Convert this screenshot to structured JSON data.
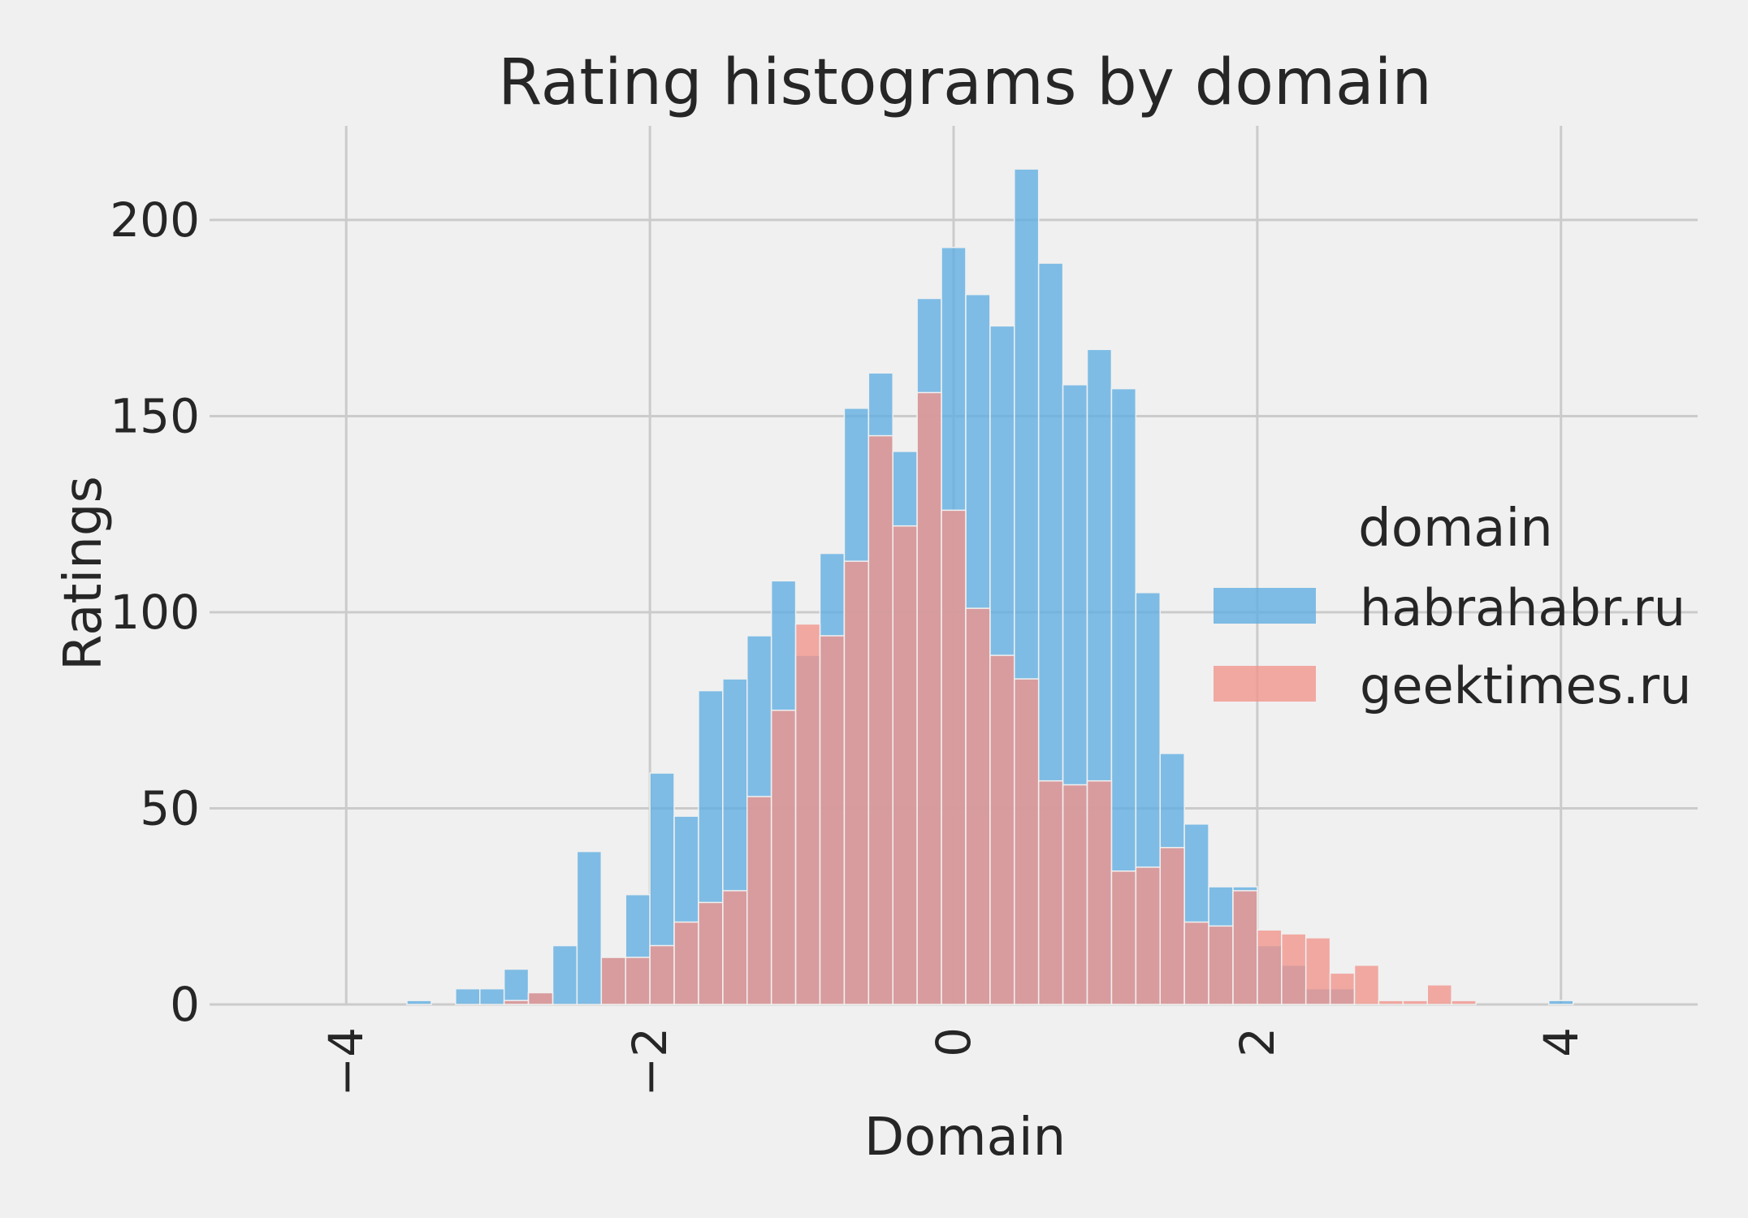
{
  "chart_data": {
    "type": "bar",
    "title": "Rating histograms by domain",
    "xlabel": "Domain",
    "ylabel": "Ratings",
    "xlim": [
      -4.9,
      4.9
    ],
    "ylim": [
      0,
      224
    ],
    "xticks": [
      -4,
      -2,
      0,
      2,
      4
    ],
    "xtick_labels": [
      "−4",
      "−2",
      "0",
      "2",
      "4"
    ],
    "yticks": [
      0,
      50,
      100,
      150,
      200
    ],
    "ytick_labels": [
      "0",
      "50",
      "100",
      "150",
      "200"
    ],
    "grid": true,
    "legend_title": "domain",
    "legend_position": "center-right",
    "bin_start": -3.6,
    "bin_width": 0.16,
    "series": [
      {
        "name": "habrahabr.ru",
        "color": "#5dade2",
        "values": [
          1,
          0,
          4,
          4,
          9,
          3,
          15,
          39,
          12,
          28,
          59,
          48,
          80,
          83,
          94,
          108,
          89,
          115,
          152,
          161,
          141,
          180,
          193,
          181,
          173,
          213,
          189,
          158,
          167,
          157,
          105,
          64,
          46,
          30,
          30,
          15,
          10,
          4,
          4,
          0,
          0,
          0,
          0,
          0,
          0,
          0,
          0,
          1
        ]
      },
      {
        "name": "geektimes.ru",
        "color": "#f1948a",
        "values": [
          0,
          0,
          0,
          0,
          1,
          3,
          0,
          0,
          12,
          12,
          15,
          21,
          26,
          29,
          53,
          75,
          97,
          94,
          113,
          145,
          122,
          156,
          126,
          101,
          89,
          83,
          57,
          56,
          57,
          34,
          35,
          40,
          21,
          20,
          29,
          19,
          18,
          17,
          8,
          10,
          1,
          1,
          5,
          1,
          0,
          0,
          0,
          0
        ]
      }
    ]
  }
}
